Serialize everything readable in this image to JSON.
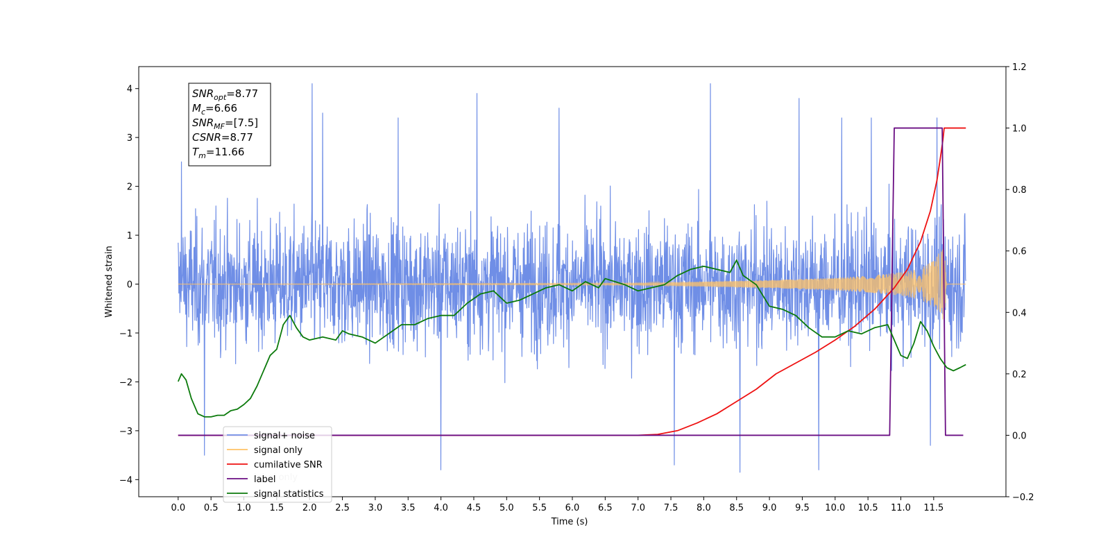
{
  "chart_data": {
    "type": "line",
    "xlabel": "Time (s)",
    "ylabel_left": "Whitened strain",
    "ylabel_right": "",
    "xlim": [
      -0.6,
      12.6
    ],
    "ylim_left": [
      -4.35,
      4.45
    ],
    "ylim_right": [
      -0.2,
      1.2
    ],
    "x_ticks": [
      0.0,
      0.5,
      1.0,
      1.5,
      2.0,
      2.5,
      3.0,
      3.5,
      4.0,
      4.5,
      5.0,
      5.5,
      6.0,
      6.5,
      7.0,
      7.5,
      8.0,
      8.5,
      9.0,
      9.5,
      10.0,
      10.5,
      11.0,
      11.5
    ],
    "x_tick_labels": [
      "0.0",
      "0.5",
      "1.0",
      "1.5",
      "2.0",
      "2.5",
      "3.0",
      "3.5",
      "4.0",
      "4.5",
      "5.0",
      "5.5",
      "6.0",
      "6.5",
      "7.0",
      "7.5",
      "8.0",
      "8.5",
      "9.0",
      "9.5",
      "10.0",
      "10.5",
      "11.0",
      "11.5"
    ],
    "y_left_ticks": [
      -4,
      -3,
      -2,
      -1,
      0,
      1,
      2,
      3,
      4
    ],
    "y_left_tick_labels": [
      "−4",
      "−3",
      "−2",
      "−1",
      "0",
      "1",
      "2",
      "3",
      "4"
    ],
    "y_right_ticks": [
      -0.2,
      0.0,
      0.2,
      0.4,
      0.6,
      0.8,
      1.0,
      1.2
    ],
    "y_right_tick_labels": [
      "−0.2",
      "0.0",
      "0.2",
      "0.4",
      "0.6",
      "0.8",
      "1.0",
      "1.2"
    ],
    "grid": false,
    "info_box": {
      "lines": [
        {
          "base": "SNR",
          "sub": "opt",
          "value": "=8.77"
        },
        {
          "base": "M",
          "sub": "c",
          "value": "=6.66"
        },
        {
          "base": "SNR",
          "sub": "MF",
          "value": "=[7.5]"
        },
        {
          "base": "CSNR",
          "sub": "",
          "value": "=8.77"
        },
        {
          "base": "T",
          "sub": "m",
          "value": "=11.66"
        }
      ]
    },
    "legend": {
      "placement": "lower-left",
      "entries": [
        {
          "label": "signal+ noise",
          "color": "#6f8ee6"
        },
        {
          "label": "signal only",
          "color": "#ffc266"
        },
        {
          "label": "cumilative SNR",
          "color": "#ee1111"
        },
        {
          "label": "label",
          "color": "#6a0d83"
        },
        {
          "label": "signal statistics",
          "color": "#0b7a0b"
        }
      ],
      "obscured_text": "label only"
    },
    "series": [
      {
        "name": "signal+ noise",
        "axis": "left",
        "color": "#6f8ee6",
        "kind": "noise-band",
        "x_range": [
          0.0,
          11.99
        ],
        "mean": 0.0,
        "envelope_min": [
          -4.0,
          -3.85
        ],
        "envelope_max": [
          4.1,
          4.1
        ],
        "notable_peaks": [
          {
            "x": 0.05,
            "y": 2.5
          },
          {
            "x": 2.04,
            "y": 4.1
          },
          {
            "x": 2.2,
            "y": 3.5
          },
          {
            "x": 3.35,
            "y": 3.4
          },
          {
            "x": 4.55,
            "y": 3.9
          },
          {
            "x": 5.8,
            "y": 3.6
          },
          {
            "x": 8.1,
            "y": 4.1
          },
          {
            "x": 9.45,
            "y": 3.8
          },
          {
            "x": 10.1,
            "y": 3.4
          },
          {
            "x": 10.55,
            "y": 3.4
          },
          {
            "x": 11.55,
            "y": 3.4
          },
          {
            "x": 0.4,
            "y": -3.5
          },
          {
            "x": 4.0,
            "y": -3.8
          },
          {
            "x": 7.55,
            "y": -3.7
          },
          {
            "x": 8.55,
            "y": -3.85
          },
          {
            "x": 9.75,
            "y": -3.8
          },
          {
            "x": 11.45,
            "y": -3.3
          }
        ]
      },
      {
        "name": "signal only",
        "axis": "left",
        "color": "#ffc266",
        "kind": "chirp-envelope",
        "x_range": [
          0.0,
          11.99
        ],
        "merger_time": 11.66,
        "peak_amplitude": 0.75,
        "envelope": [
          {
            "x": 0.0,
            "a": 0.0
          },
          {
            "x": 7.0,
            "a": 0.02
          },
          {
            "x": 8.0,
            "a": 0.05
          },
          {
            "x": 9.0,
            "a": 0.08
          },
          {
            "x": 10.0,
            "a": 0.13
          },
          {
            "x": 10.5,
            "a": 0.17
          },
          {
            "x": 11.0,
            "a": 0.24
          },
          {
            "x": 11.3,
            "a": 0.32
          },
          {
            "x": 11.5,
            "a": 0.48
          },
          {
            "x": 11.6,
            "a": 0.68
          },
          {
            "x": 11.66,
            "a": 0.75
          },
          {
            "x": 11.7,
            "a": 0.0
          },
          {
            "x": 11.99,
            "a": 0.0
          }
        ]
      },
      {
        "name": "cumilative SNR",
        "axis": "right",
        "color": "#ee1111",
        "points": [
          [
            0.0,
            0.0
          ],
          [
            7.0,
            0.0
          ],
          [
            7.3,
            0.003
          ],
          [
            7.6,
            0.015
          ],
          [
            7.9,
            0.04
          ],
          [
            8.2,
            0.07
          ],
          [
            8.5,
            0.11
          ],
          [
            8.8,
            0.15
          ],
          [
            9.1,
            0.2
          ],
          [
            9.4,
            0.235
          ],
          [
            9.7,
            0.27
          ],
          [
            10.0,
            0.31
          ],
          [
            10.3,
            0.355
          ],
          [
            10.6,
            0.41
          ],
          [
            10.9,
            0.48
          ],
          [
            11.1,
            0.54
          ],
          [
            11.3,
            0.63
          ],
          [
            11.45,
            0.73
          ],
          [
            11.55,
            0.83
          ],
          [
            11.6,
            0.9
          ],
          [
            11.64,
            0.96
          ],
          [
            11.66,
            1.0
          ],
          [
            11.99,
            1.0
          ]
        ]
      },
      {
        "name": "label",
        "axis": "right",
        "color": "#6a0d83",
        "points": [
          [
            0.0,
            0.0
          ],
          [
            10.83,
            0.0
          ],
          [
            10.9,
            1.0
          ],
          [
            11.63,
            1.0
          ],
          [
            11.68,
            0.0
          ],
          [
            11.95,
            0.0
          ]
        ]
      },
      {
        "name": "signal statistics",
        "axis": "right",
        "color": "#0b7a0b",
        "points": [
          [
            0.0,
            0.175
          ],
          [
            0.05,
            0.2
          ],
          [
            0.12,
            0.18
          ],
          [
            0.2,
            0.12
          ],
          [
            0.3,
            0.07
          ],
          [
            0.4,
            0.06
          ],
          [
            0.5,
            0.06
          ],
          [
            0.6,
            0.065
          ],
          [
            0.7,
            0.065
          ],
          [
            0.8,
            0.08
          ],
          [
            0.9,
            0.085
          ],
          [
            1.0,
            0.1
          ],
          [
            1.1,
            0.12
          ],
          [
            1.2,
            0.16
          ],
          [
            1.3,
            0.21
          ],
          [
            1.4,
            0.26
          ],
          [
            1.5,
            0.28
          ],
          [
            1.6,
            0.36
          ],
          [
            1.7,
            0.39
          ],
          [
            1.8,
            0.35
          ],
          [
            1.9,
            0.32
          ],
          [
            2.0,
            0.31
          ],
          [
            2.2,
            0.32
          ],
          [
            2.4,
            0.31
          ],
          [
            2.5,
            0.34
          ],
          [
            2.6,
            0.33
          ],
          [
            2.8,
            0.32
          ],
          [
            3.0,
            0.3
          ],
          [
            3.2,
            0.33
          ],
          [
            3.4,
            0.36
          ],
          [
            3.6,
            0.36
          ],
          [
            3.8,
            0.38
          ],
          [
            4.0,
            0.39
          ],
          [
            4.2,
            0.39
          ],
          [
            4.4,
            0.43
          ],
          [
            4.6,
            0.46
          ],
          [
            4.8,
            0.47
          ],
          [
            5.0,
            0.43
          ],
          [
            5.2,
            0.44
          ],
          [
            5.4,
            0.46
          ],
          [
            5.6,
            0.48
          ],
          [
            5.8,
            0.49
          ],
          [
            6.0,
            0.47
          ],
          [
            6.2,
            0.5
          ],
          [
            6.4,
            0.48
          ],
          [
            6.5,
            0.51
          ],
          [
            6.8,
            0.49
          ],
          [
            7.0,
            0.47
          ],
          [
            7.2,
            0.48
          ],
          [
            7.4,
            0.49
          ],
          [
            7.6,
            0.52
          ],
          [
            7.8,
            0.54
          ],
          [
            8.0,
            0.55
          ],
          [
            8.2,
            0.54
          ],
          [
            8.4,
            0.53
          ],
          [
            8.5,
            0.57
          ],
          [
            8.6,
            0.52
          ],
          [
            8.8,
            0.49
          ],
          [
            9.0,
            0.42
          ],
          [
            9.2,
            0.41
          ],
          [
            9.4,
            0.39
          ],
          [
            9.6,
            0.35
          ],
          [
            9.8,
            0.32
          ],
          [
            10.0,
            0.32
          ],
          [
            10.2,
            0.34
          ],
          [
            10.4,
            0.33
          ],
          [
            10.6,
            0.35
          ],
          [
            10.8,
            0.36
          ],
          [
            10.9,
            0.31
          ],
          [
            11.0,
            0.26
          ],
          [
            11.1,
            0.25
          ],
          [
            11.2,
            0.3
          ],
          [
            11.3,
            0.37
          ],
          [
            11.4,
            0.34
          ],
          [
            11.5,
            0.29
          ],
          [
            11.6,
            0.25
          ],
          [
            11.7,
            0.22
          ],
          [
            11.8,
            0.21
          ],
          [
            11.9,
            0.22
          ],
          [
            11.99,
            0.23
          ]
        ]
      }
    ]
  }
}
